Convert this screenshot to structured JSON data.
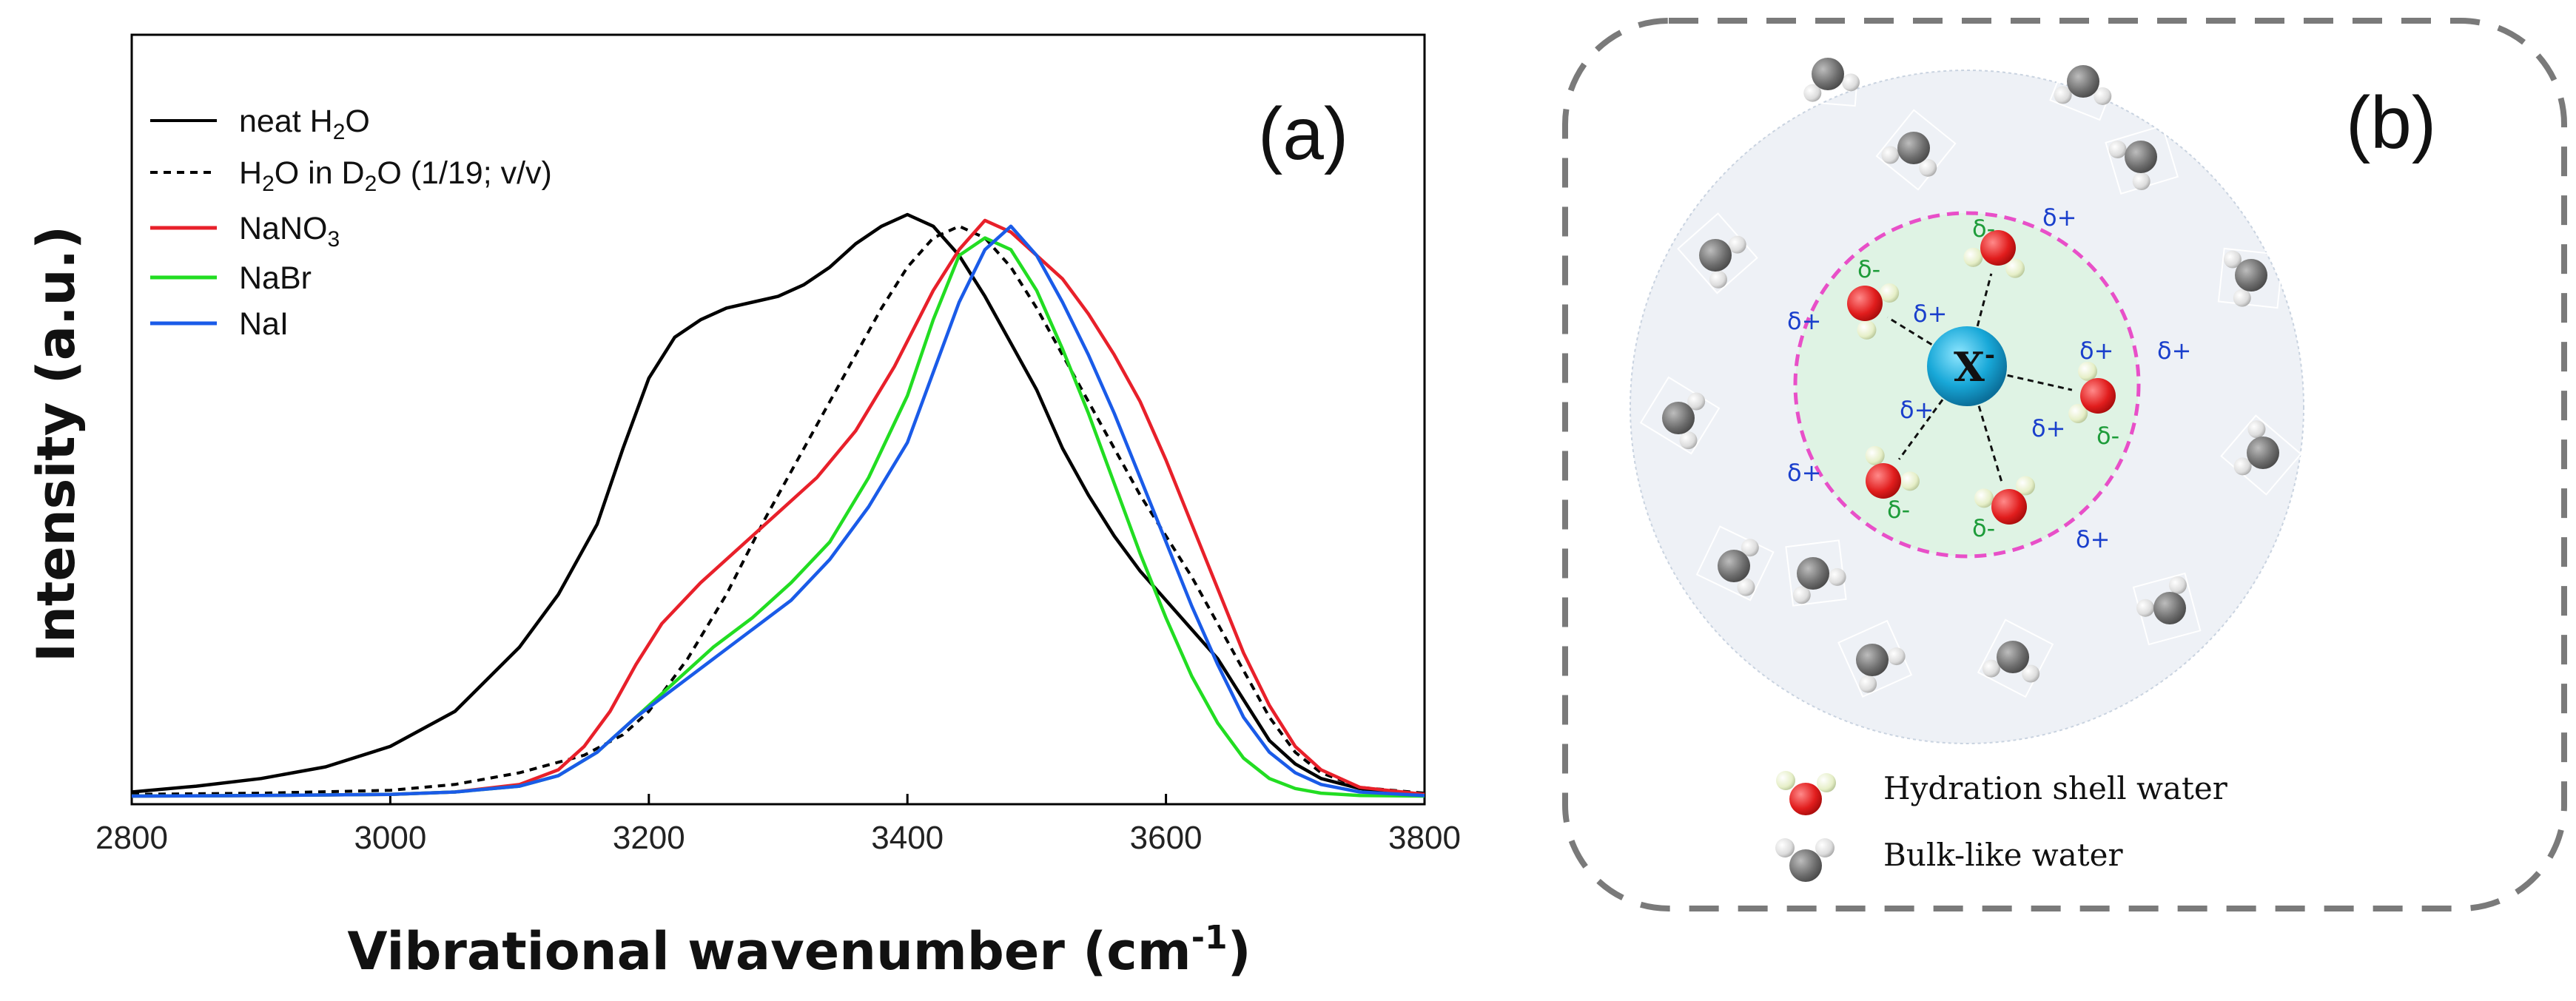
{
  "chart_data": {
    "type": "line",
    "title": "",
    "panel_label": "(a)",
    "xlabel": "Vibrational wavenumber",
    "xlabel_unit": "(cm",
    "xlabel_unit_sup": "-1",
    "xlabel_unit_close": ")",
    "ylabel": "Intensity (a.u.)",
    "xlim": [
      2800,
      3800
    ],
    "ylim": [
      0,
      1.0
    ],
    "xticks": [
      "2800",
      "3000",
      "3200",
      "3400",
      "3600",
      "3800"
    ],
    "xtick_values": [
      2800,
      3000,
      3200,
      3400,
      3600,
      3800
    ],
    "legend_position": "top-left",
    "series": [
      {
        "name": "neat H2O",
        "label_main": "neat H",
        "label_sub": "2",
        "label_tail": "O",
        "label_mid": "",
        "label_sub2": "",
        "label_tail2": "",
        "color": "#000000",
        "style": "solid",
        "x": [
          2800,
          2850,
          2900,
          2950,
          3000,
          3050,
          3100,
          3130,
          3160,
          3180,
          3200,
          3220,
          3240,
          3260,
          3280,
          3300,
          3320,
          3340,
          3360,
          3380,
          3400,
          3420,
          3440,
          3460,
          3480,
          3500,
          3520,
          3540,
          3560,
          3580,
          3600,
          3620,
          3640,
          3660,
          3680,
          3700,
          3720,
          3750,
          3780,
          3800
        ],
        "y": [
          0.012,
          0.022,
          0.035,
          0.055,
          0.09,
          0.15,
          0.26,
          0.35,
          0.47,
          0.6,
          0.72,
          0.79,
          0.82,
          0.84,
          0.85,
          0.86,
          0.88,
          0.91,
          0.95,
          0.98,
          1.0,
          0.98,
          0.93,
          0.86,
          0.78,
          0.7,
          0.6,
          0.52,
          0.45,
          0.39,
          0.34,
          0.29,
          0.24,
          0.17,
          0.1,
          0.06,
          0.035,
          0.018,
          0.01,
          0.008
        ]
      },
      {
        "name": "H2O in D2O (1/19; v/v)",
        "label_main": "H",
        "label_sub": "2",
        "label_tail": "O in D",
        "label_mid": "",
        "label_sub2": "2",
        "label_tail2": "O (1/19; v/v)",
        "color": "#000000",
        "style": "dashed",
        "x": [
          2800,
          2900,
          3000,
          3050,
          3100,
          3150,
          3180,
          3200,
          3230,
          3260,
          3290,
          3320,
          3350,
          3380,
          3400,
          3420,
          3440,
          3460,
          3480,
          3500,
          3520,
          3540,
          3560,
          3580,
          3600,
          3620,
          3640,
          3660,
          3680,
          3700,
          3720,
          3750,
          3800
        ],
        "y": [
          0.008,
          0.01,
          0.015,
          0.025,
          0.045,
          0.075,
          0.11,
          0.15,
          0.24,
          0.35,
          0.48,
          0.6,
          0.72,
          0.84,
          0.91,
          0.96,
          0.98,
          0.96,
          0.91,
          0.84,
          0.76,
          0.68,
          0.6,
          0.52,
          0.45,
          0.38,
          0.3,
          0.22,
          0.14,
          0.08,
          0.045,
          0.02,
          0.01
        ]
      },
      {
        "name": "NaNO3",
        "label_main": "NaNO",
        "label_sub": "3",
        "label_tail": "",
        "label_mid": "",
        "label_sub2": "",
        "label_tail2": "",
        "color": "#e8202a",
        "style": "solid",
        "x": [
          2800,
          2900,
          3000,
          3050,
          3100,
          3130,
          3150,
          3170,
          3190,
          3210,
          3240,
          3270,
          3300,
          3330,
          3360,
          3390,
          3420,
          3440,
          3460,
          3480,
          3500,
          3520,
          3540,
          3560,
          3580,
          3600,
          3620,
          3640,
          3660,
          3680,
          3700,
          3720,
          3750,
          3800
        ],
        "y": [
          0.005,
          0.006,
          0.008,
          0.012,
          0.025,
          0.05,
          0.09,
          0.15,
          0.23,
          0.3,
          0.37,
          0.43,
          0.49,
          0.55,
          0.63,
          0.74,
          0.87,
          0.94,
          0.99,
          0.97,
          0.93,
          0.89,
          0.83,
          0.76,
          0.68,
          0.58,
          0.47,
          0.36,
          0.25,
          0.16,
          0.09,
          0.05,
          0.02,
          0.008
        ]
      },
      {
        "name": "NaBr",
        "label_main": "NaBr",
        "label_sub": "",
        "label_tail": "",
        "label_mid": "",
        "label_sub2": "",
        "label_tail2": "",
        "color": "#22dd22",
        "style": "solid",
        "x": [
          2800,
          2900,
          3000,
          3050,
          3100,
          3130,
          3160,
          3190,
          3220,
          3250,
          3280,
          3310,
          3340,
          3370,
          3400,
          3420,
          3440,
          3460,
          3480,
          3500,
          3520,
          3540,
          3560,
          3580,
          3600,
          3620,
          3640,
          3660,
          3680,
          3700,
          3720,
          3750,
          3800
        ],
        "y": [
          0.005,
          0.006,
          0.008,
          0.012,
          0.022,
          0.04,
          0.08,
          0.14,
          0.2,
          0.26,
          0.31,
          0.37,
          0.44,
          0.55,
          0.69,
          0.82,
          0.93,
          0.96,
          0.94,
          0.87,
          0.77,
          0.66,
          0.54,
          0.42,
          0.31,
          0.21,
          0.13,
          0.07,
          0.035,
          0.018,
          0.01,
          0.006,
          0.005
        ]
      },
      {
        "name": "NaI",
        "label_main": "NaI",
        "label_sub": "",
        "label_tail": "",
        "label_mid": "",
        "label_sub2": "",
        "label_tail2": "",
        "color": "#1a5be8",
        "style": "solid",
        "x": [
          2800,
          2900,
          3000,
          3050,
          3100,
          3130,
          3160,
          3190,
          3220,
          3250,
          3280,
          3310,
          3340,
          3370,
          3400,
          3420,
          3440,
          3460,
          3480,
          3500,
          3520,
          3540,
          3560,
          3580,
          3600,
          3620,
          3640,
          3660,
          3680,
          3700,
          3720,
          3750,
          3800
        ],
        "y": [
          0.005,
          0.006,
          0.008,
          0.012,
          0.022,
          0.04,
          0.08,
          0.14,
          0.19,
          0.24,
          0.29,
          0.34,
          0.41,
          0.5,
          0.61,
          0.73,
          0.85,
          0.94,
          0.98,
          0.93,
          0.85,
          0.76,
          0.66,
          0.55,
          0.44,
          0.33,
          0.23,
          0.14,
          0.08,
          0.045,
          0.025,
          0.012,
          0.006
        ]
      }
    ]
  },
  "schematic": {
    "panel_label": "(b)",
    "ion_label": "X",
    "ion_sup": "-",
    "delta_plus": "δ+",
    "delta_minus": "δ-",
    "legend_hydration": "Hydration shell water",
    "legend_bulk": "Bulk-like water",
    "colors": {
      "hydration_oxygen": "#e11d1d",
      "bulk_oxygen": "#707070",
      "ion": "#18a8d8",
      "shell_border": "#e84fc8",
      "shell_fill": "#dff3e4",
      "outer_fill": "#eef1f6"
    }
  }
}
